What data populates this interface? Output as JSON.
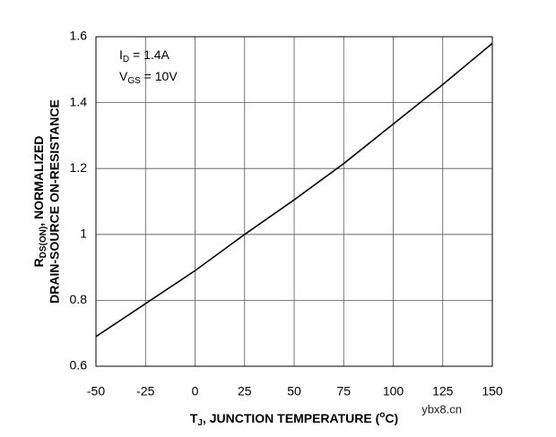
{
  "chart_data": {
    "type": "line",
    "x": [
      -50,
      -25,
      0,
      25,
      50,
      75,
      100,
      125,
      150
    ],
    "series": [
      {
        "color": "#000000",
        "values": [
          0.69,
          0.79,
          0.89,
          1.0,
          1.105,
          1.215,
          1.335,
          1.455,
          1.58
        ]
      }
    ],
    "xlim": [
      -50,
      150
    ],
    "xticks": [
      -50,
      -25,
      0,
      25,
      50,
      75,
      100,
      125,
      150
    ],
    "ylim": [
      0.6,
      1.6
    ],
    "yticks": [
      0.6,
      0.8,
      1,
      1.2,
      1.4,
      1.6
    ],
    "grid": true,
    "x_label": {
      "main": "T",
      "sub": "J",
      "rest": ", JUNCTION TEMPERATURE (",
      "sup": "o",
      "end": "C)"
    },
    "y_label": {
      "line1": {
        "main": "R",
        "sub": "DS(ON)",
        "rest": ", NORMALIZED"
      },
      "line2": "DRAIN-SOURCE ON-RESISTANCE"
    },
    "annotations": [
      {
        "main": "I",
        "sub": "D",
        "rest": " = 1.4A"
      },
      {
        "main": "V",
        "sub": "GS",
        "rest": " = 10V"
      }
    ],
    "watermark": "ybx8.cn"
  }
}
